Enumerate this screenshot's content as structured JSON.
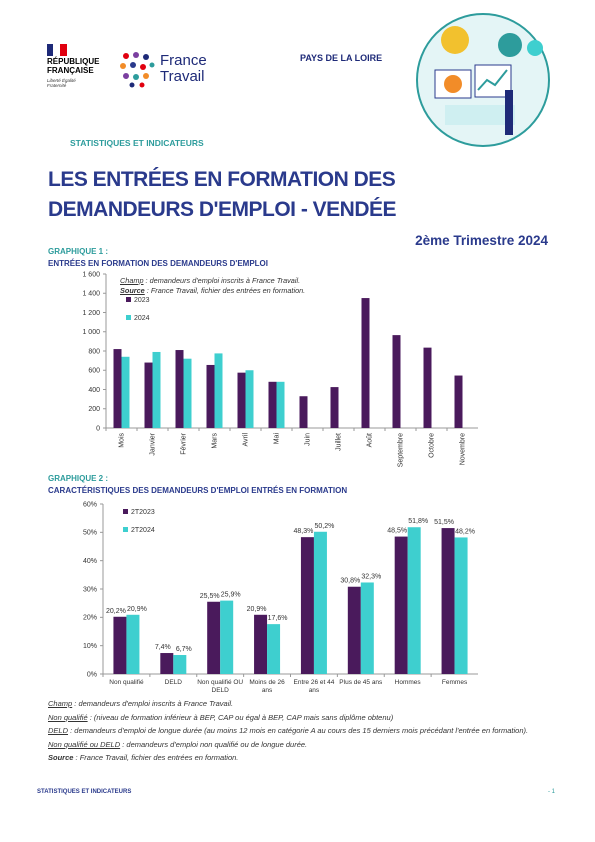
{
  "header": {
    "republic": "RÉPUBLIQUE FRANÇAISE",
    "motto": "Liberté Égalité Fraternité",
    "brand": "France Travail",
    "region": "PAYS DE LA LOIRE",
    "section": "STATISTIQUES ET INDICATEURS"
  },
  "title": "LES ENTRÉES EN FORMATION DES DEMANDEURS D'EMPLOI - VENDÉE",
  "period": "2ème Trimestre 2024",
  "chart_data": [
    {
      "type": "bar",
      "label": "GRAPHIQUE 1 :",
      "title": "ENTRÉES EN FORMATION DES DEMANDEURS D'EMPLOI",
      "annotations": [
        {
          "term": "Champ",
          "text": " : demandeurs d'emploi inscrits à France Travail."
        },
        {
          "term": "Source",
          "text": " : France Travail, fichier des entrées en formation."
        }
      ],
      "categories": [
        "Mois",
        "Janvier",
        "Février",
        "Mars",
        "Avril",
        "Mai",
        "Juin",
        "Juillet",
        "Août",
        "Septembre",
        "Octobre",
        "Novembre"
      ],
      "series": [
        {
          "name": "2023",
          "color": "#4a1a5c",
          "values": [
            820,
            680,
            810,
            655,
            575,
            480,
            330,
            425,
            1350,
            965,
            835,
            545
          ]
        },
        {
          "name": "2024",
          "color": "#3ecfcf",
          "values": [
            740,
            790,
            720,
            775,
            600,
            480,
            null,
            null,
            null,
            null,
            null,
            null
          ]
        }
      ],
      "ylim": [
        0,
        1600
      ],
      "yticks": [
        0,
        200,
        400,
        600,
        800,
        {
          "value": 1000,
          "label": "1 000"
        },
        {
          "value": 1200,
          "label": "1 200"
        },
        {
          "value": 1400,
          "label": "1 400"
        },
        {
          "value": 1600,
          "label": "1 600"
        }
      ],
      "grid": false,
      "legend": "top-left"
    },
    {
      "type": "bar",
      "label": "GRAPHIQUE 2 :",
      "title": "CARACTÉRISTIQUES DES DEMANDEURS D'EMPLOI ENTRÉS EN FORMATION",
      "categories": [
        "Non qualifié",
        "DELD",
        "Non qualifié OU DELD",
        "Moins de 26 ans",
        "Entre 26 et 44 ans",
        "Plus de 45 ans",
        "Hommes",
        "Femmes"
      ],
      "series": [
        {
          "name": "2T2023",
          "color": "#4a1a5c",
          "values": [
            20.2,
            7.4,
            25.5,
            20.9,
            48.3,
            30.8,
            48.5,
            51.5
          ],
          "value_labels": [
            "20,2%",
            "7,4%",
            "25,5%",
            "20,9%",
            "48,3%",
            "30,8%",
            "48,5%",
            "51,5%"
          ]
        },
        {
          "name": "2T2024",
          "color": "#3ecfcf",
          "values": [
            20.9,
            6.7,
            25.9,
            17.6,
            50.2,
            32.3,
            51.8,
            48.2
          ],
          "value_labels": [
            "20,9%",
            "6,7%",
            "25,9%",
            "17,6%",
            "50,2%",
            "32,3%",
            "51,8%",
            "48,2%"
          ]
        }
      ],
      "ylim": [
        0,
        60
      ],
      "yticks": [
        {
          "value": 0,
          "label": "0%"
        },
        {
          "value": 10,
          "label": "10%"
        },
        {
          "value": 20,
          "label": "20%"
        },
        {
          "value": 30,
          "label": "30%"
        },
        {
          "value": 40,
          "label": "40%"
        },
        {
          "value": 50,
          "label": "50%"
        },
        {
          "value": 60,
          "label": "60%"
        }
      ],
      "grid": false,
      "legend": "top-left"
    }
  ],
  "notes": [
    {
      "term": "Champ",
      "text": " : demandeurs d'emploi inscrits à France Travail."
    },
    {
      "term": "Non qualifié",
      "text": " : (niveau de formation inférieur à BEP, CAP ou égal à BEP, CAP mais sans diplôme obtenu)"
    },
    {
      "term": "DELD",
      "text": " : demandeurs d'emploi de longue durée (au moins 12 mois en catégorie A au cours des 15 derniers mois précédant l'entrée en formation)."
    },
    {
      "term": "Non qualifié ou DELD",
      "text": " : demandeurs d'emploi non qualifié ou de longue durée."
    },
    {
      "term": "Source",
      "text": " : France Travail, fichier des entrées en formation."
    }
  ],
  "footer": {
    "section": "STATISTIQUES ET INDICATEURS",
    "page": "- 1"
  }
}
